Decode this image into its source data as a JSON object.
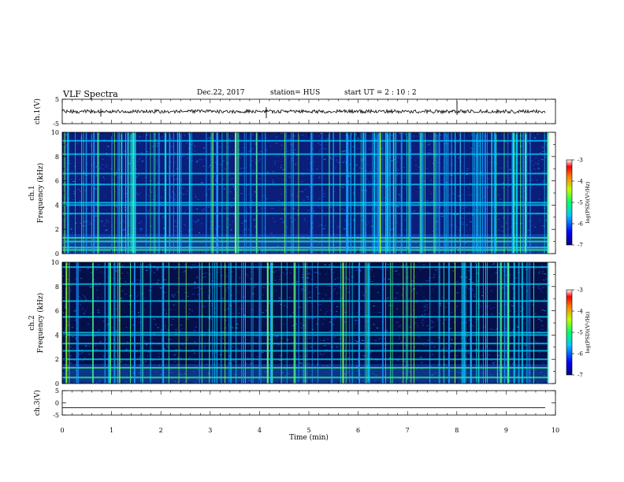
{
  "header": {
    "title": "VLF Spectra",
    "date": "Dec.22, 2017",
    "station": "station= HUS",
    "start": "start UT =  2 : 10 : 2"
  },
  "chart_data": [
    {
      "type": "line",
      "name": "ch1-waveform",
      "ylabel": "ch.1(V)",
      "ylim": [
        -5,
        5
      ],
      "yticks": [
        "5",
        "-5"
      ],
      "baseline": 0,
      "xlim": [
        0,
        10
      ]
    },
    {
      "type": "heatmap",
      "name": "ch1-spectrogram",
      "ylabel_top": "ch.1",
      "ylabel": "Frequency (kHz)",
      "ylim": [
        0,
        10
      ],
      "yticks": [
        "0",
        "2",
        "4",
        "6",
        "8",
        "10"
      ],
      "xlim": [
        0,
        10
      ],
      "colorbar": {
        "label": "log(PSD)(V²/Hz)",
        "range": [
          -7,
          -3
        ],
        "ticks": [
          "-3",
          "-4",
          "-5",
          "-6",
          "-7"
        ]
      },
      "horizontal_lines_kHz": [
        0.3,
        0.5,
        1.0,
        1.3,
        3.3,
        4.0,
        4.2,
        5.7,
        6.6,
        8.2,
        9.3
      ],
      "data_end_min": 9.85
    },
    {
      "type": "heatmap",
      "name": "ch2-spectrogram",
      "ylabel_top": "ch.2",
      "ylabel": "Frequency (kHz)",
      "ylim": [
        0,
        10
      ],
      "yticks": [
        "0",
        "2",
        "4",
        "6",
        "8",
        "10"
      ],
      "xlim": [
        0,
        10
      ],
      "colorbar": {
        "label": "log(PSD)(V²/Hz)",
        "range": [
          -7,
          -3
        ],
        "ticks": [
          "-3",
          "-4",
          "-5",
          "-6",
          "-7"
        ]
      },
      "horizontal_lines_kHz": [
        0.5,
        1.3,
        2.0,
        2.7,
        3.3,
        4.0,
        4.2,
        5.5,
        6.8,
        8.2,
        9.6
      ],
      "data_end_min": 9.85
    },
    {
      "type": "line",
      "name": "ch3-waveform",
      "ylabel": "ch.3(V)",
      "ylim": [
        -5,
        5
      ],
      "yticks": [
        "5",
        "0",
        "-5"
      ],
      "baseline": -2,
      "xlim": [
        0,
        10
      ]
    }
  ],
  "xaxis": {
    "label": "Time (min)",
    "ticks": [
      "0",
      "1",
      "2",
      "3",
      "4",
      "5",
      "6",
      "7",
      "8",
      "9",
      "10"
    ]
  }
}
